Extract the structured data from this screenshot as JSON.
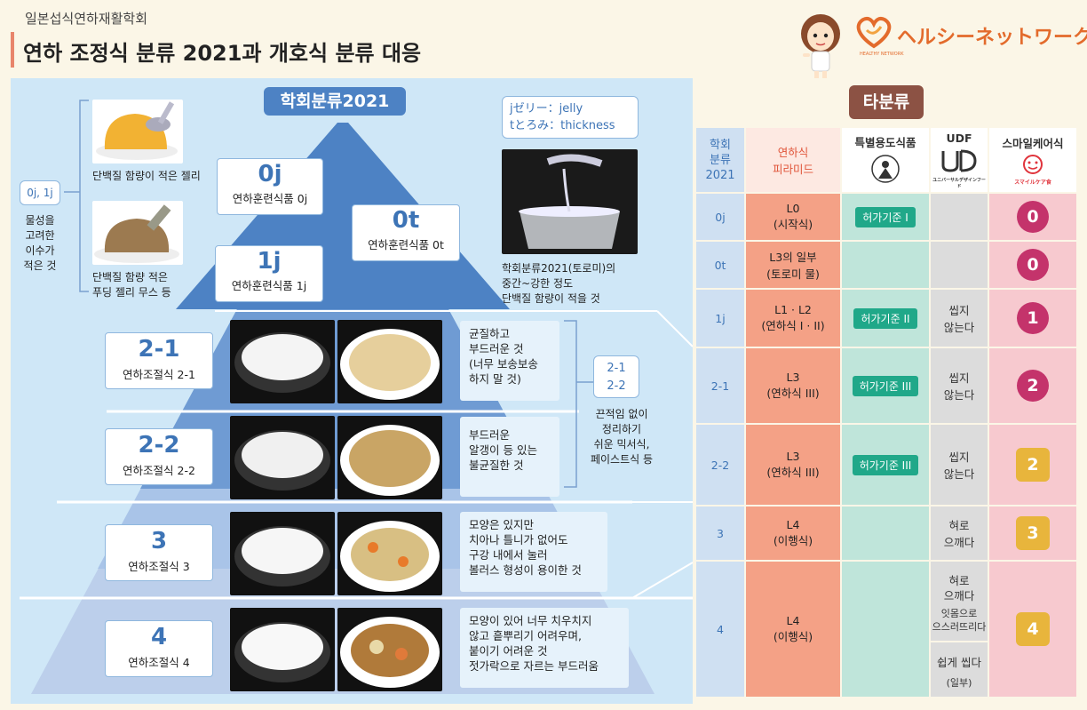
{
  "header": {
    "subtitle": "일본섭식연하재활학회",
    "title": "연하 조정식 분류 2021과 개호식 분류 대응",
    "logo_text": "ヘルシーネットワーク",
    "logo_sub": "HEALTHY NETWORK"
  },
  "left": {
    "title": "학회분류2021",
    "legend": "jゼリー：jelly\ntとろみ：thickness",
    "side_code": "0j, 1j",
    "side_note": "물성을\n고려한\n이수가\n적은 것",
    "img1_caption": "단백질 함량이 적은 젤리",
    "img2_caption": "단백질 함량 적은\n푸딩 젤리 무스 등",
    "img3_caption": "학회분류2021(토로미)의\n중간~강한 정도\n단백질 함량이 적을 것",
    "bracket_code": "2-1\n2-2",
    "bracket_note": "끈적임 없이\n정리하기\n쉬운 믹서식,\n페이스트식 등",
    "levels": [
      {
        "code": "0j",
        "label": "연하훈련식품 0j"
      },
      {
        "code": "0t",
        "label": "연하훈련식품 0t"
      },
      {
        "code": "1j",
        "label": "연하훈련식품 1j"
      },
      {
        "code": "2-1",
        "label": "연하조절식 2-1",
        "desc": "균질하고\n부드러운 것\n(너무 보송보송\n하지 말 것)"
      },
      {
        "code": "2-2",
        "label": "연하조절식 2-2",
        "desc": "부드러운\n알갱이 등 있는\n불균질한 것"
      },
      {
        "code": "3",
        "label": "연하조절식 3",
        "desc": "모양은 있지만\n치아나 틀니가 없어도\n구강 내에서 눌러\n볼러스 형성이 용이한 것"
      },
      {
        "code": "4",
        "label": "연하조절식 4",
        "desc": "모양이 있어 너무 치우치지\n않고 흩뿌리기 어려우며,\n붙이기 어려운 것\n젓가락으로 자르는 부드러움"
      }
    ]
  },
  "right": {
    "title": "타분류",
    "headers": {
      "gakkai": "학회\n분류\n2021",
      "pyramid": "연하식\n피라미드",
      "tokubetsu": "특별용도식품",
      "udf": "UDF",
      "udf_sub": "ユニバーサルデザインフード",
      "smile": "스마일케어식",
      "smile_sub": "スマイルケア食"
    },
    "rows": [
      {
        "code": "0j",
        "pyramid": "L0\n(시작식)",
        "tok": "허가기준 I",
        "udf": "",
        "smile": "0",
        "smile_style": "circle"
      },
      {
        "code": "0t",
        "pyramid": "L3의 일부\n(토로미 물)",
        "tok": "",
        "udf": "",
        "smile": "0",
        "smile_style": "circle"
      },
      {
        "code": "1j",
        "pyramid": "L1 · L2\n(연하식 I · II)",
        "tok": "허가기준 II",
        "udf": "씹지\n않는다",
        "smile": "1",
        "smile_style": "circle"
      },
      {
        "code": "2-1",
        "pyramid": "L3\n(연하식 III)",
        "tok": "허가기준 III",
        "udf": "씹지\n않는다",
        "smile": "2",
        "smile_style": "circle"
      },
      {
        "code": "2-2",
        "pyramid": "L3\n(연하식 III)",
        "tok": "허가기준 III",
        "udf": "씹지\n않는다",
        "smile": "2",
        "smile_style": "square"
      },
      {
        "code": "3",
        "pyramid": "L4\n(이행식)",
        "tok": "",
        "udf": "혀로\n으깨다",
        "smile": "3",
        "smile_style": "square"
      },
      {
        "code": "4",
        "pyramid": "L4\n(이행식)",
        "tok": "",
        "udf_a": "혀로\n으깨다",
        "udf_b": "잇몸으로\n으스러뜨리다",
        "udf_c": "쉽게 씹다",
        "udf_c_note": "(일부)",
        "smile": "4",
        "smile_style": "square"
      }
    ]
  },
  "colors": {
    "pyramid_dark": "#4d82c4",
    "pyramid_mid": "#6f9bd3",
    "pyramid_light": "#a9c4e8",
    "pyramid_pale": "#bccfeb",
    "smile_circle": "#c4336b",
    "smile_square": "#e8b53c",
    "tok_green": "#20a889"
  }
}
